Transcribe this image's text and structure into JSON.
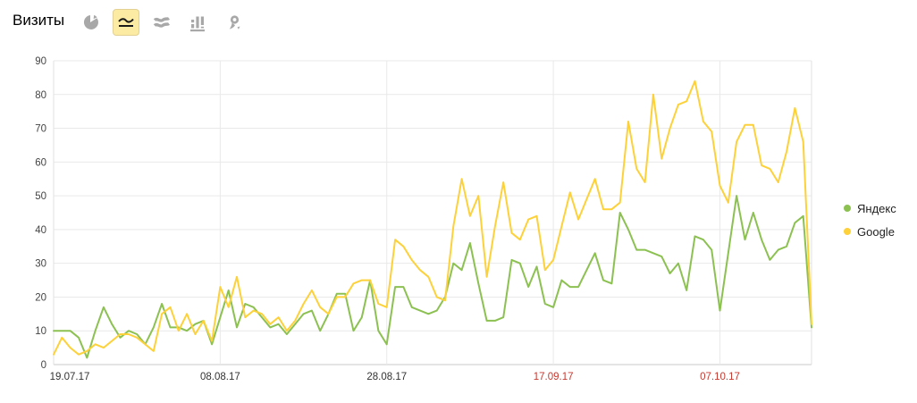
{
  "header": {
    "title": "Визиты"
  },
  "toolbar": {
    "buttons": [
      {
        "icon": "pie-chart",
        "selected": false
      },
      {
        "icon": "line-chart",
        "selected": true
      },
      {
        "icon": "stacked-area-chart",
        "selected": false
      },
      {
        "icon": "column-chart",
        "selected": false
      },
      {
        "icon": "map",
        "selected": false
      }
    ]
  },
  "legend": {
    "items": [
      {
        "label": "Яндекс",
        "color": "#8cc152"
      },
      {
        "label": "Google",
        "color": "#fdd13a"
      }
    ]
  },
  "colors": {
    "grid": "#e9e9e9",
    "axis": "#c9c9c9",
    "border": "#e2e2e2",
    "y_tick_text": "#444444",
    "x_tick_text": "#333333",
    "x_tick_red": "#c53b32",
    "selected_btn_bg": "#fceca3",
    "icon_gray": "#a8a8a8"
  },
  "chart_data": {
    "type": "line",
    "title": "Визиты",
    "xlabel": "",
    "ylabel": "",
    "ylim": [
      0,
      90
    ],
    "y_ticks": [
      0,
      10,
      20,
      30,
      40,
      50,
      60,
      70,
      80,
      90
    ],
    "grid": true,
    "legend_position": "right",
    "x_tick_indices": [
      0,
      20,
      40,
      60,
      80
    ],
    "x_tick_labels": [
      "19.07.17",
      "08.08.17",
      "28.08.17",
      "17.09.17",
      "07.10.17"
    ],
    "x_tick_label_colors": [
      "#333333",
      "#333333",
      "#333333",
      "#c53b32",
      "#c53b32"
    ],
    "series": [
      {
        "name": "Яндекс",
        "color": "#8cc152",
        "values": [
          10,
          10,
          10,
          8,
          2,
          10,
          17,
          12,
          8,
          10,
          9,
          6,
          11,
          18,
          11,
          11,
          10,
          12,
          13,
          6,
          14,
          22,
          11,
          18,
          17,
          14,
          11,
          12,
          9,
          12,
          15,
          16,
          10,
          15,
          21,
          21,
          10,
          14,
          25,
          10,
          6,
          23,
          23,
          17,
          16,
          15,
          16,
          20,
          30,
          28,
          36,
          24,
          13,
          13,
          14,
          31,
          30,
          23,
          29,
          18,
          17,
          25,
          23,
          23,
          28,
          33,
          25,
          24,
          45,
          40,
          34,
          34,
          33,
          32,
          27,
          30,
          22,
          38,
          37,
          34,
          16,
          33,
          50,
          37,
          45,
          37,
          31,
          34,
          35,
          42,
          44,
          11
        ]
      },
      {
        "name": "Google",
        "color": "#fdd13a",
        "values": [
          3,
          8,
          5,
          3,
          4,
          6,
          5,
          7,
          9,
          9,
          8,
          6,
          4,
          15,
          17,
          10,
          15,
          9,
          13,
          7,
          23,
          17,
          26,
          14,
          16,
          15,
          12,
          14,
          10,
          13,
          18,
          22,
          17,
          15,
          20,
          20,
          24,
          25,
          25,
          18,
          17,
          37,
          35,
          31,
          28,
          26,
          20,
          19,
          41,
          55,
          44,
          50,
          26,
          41,
          54,
          39,
          37,
          43,
          44,
          28,
          31,
          41,
          51,
          43,
          49,
          55,
          46,
          46,
          48,
          72,
          58,
          54,
          80,
          61,
          70,
          77,
          78,
          84,
          72,
          69,
          53,
          48,
          66,
          71,
          71,
          59,
          58,
          54,
          63,
          76,
          66,
          12
        ]
      }
    ]
  }
}
